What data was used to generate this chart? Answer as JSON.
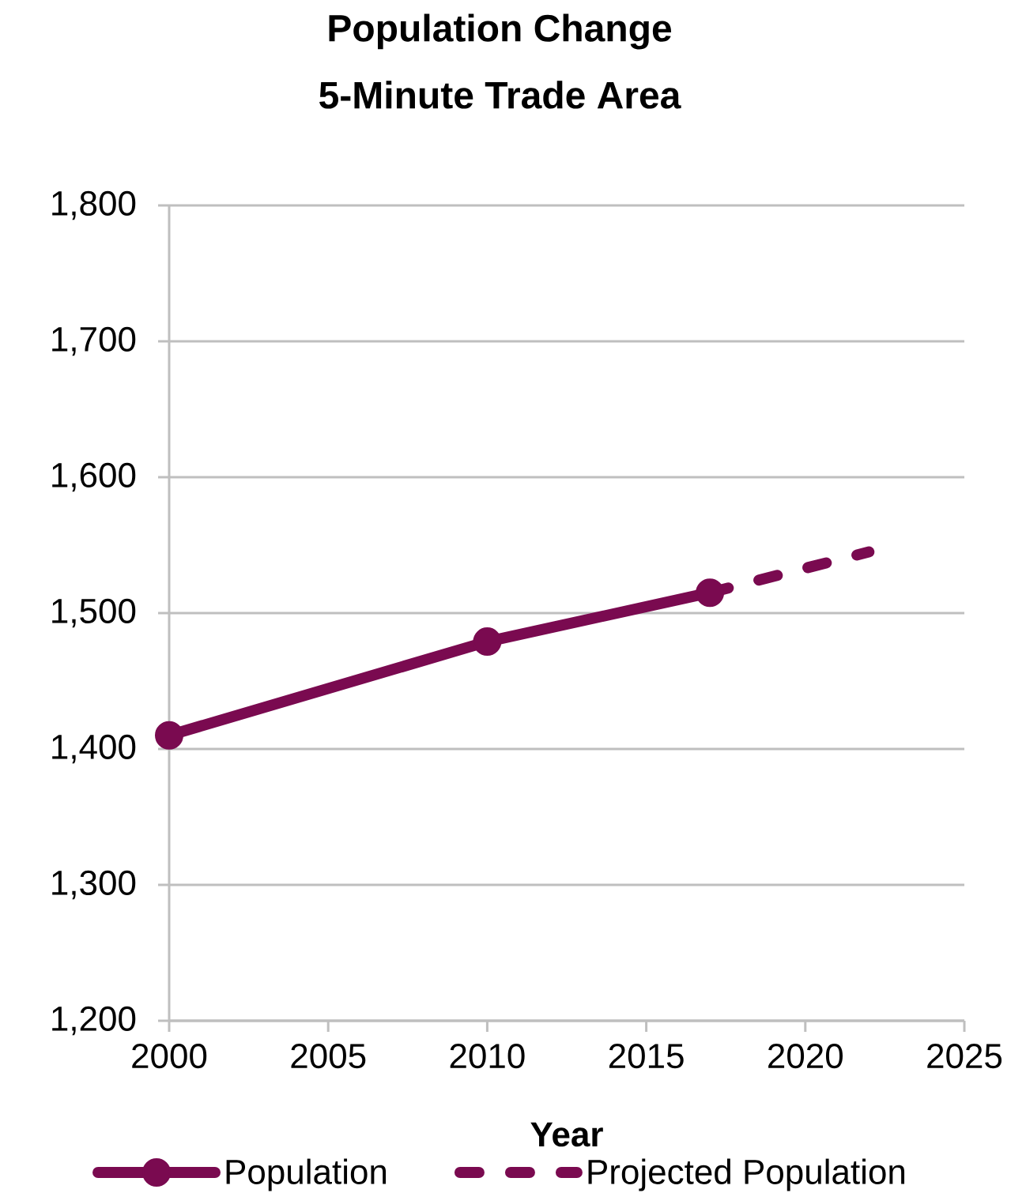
{
  "chart_data": {
    "type": "line",
    "title": "Population Change",
    "subtitle": "5-Minute Trade Area",
    "xlabel": "Year",
    "series": [
      {
        "name": "Population",
        "color": "#7a0a50",
        "x": [
          2000,
          2010,
          2017
        ],
        "values": [
          1410,
          1479,
          1515
        ],
        "marker": "circle",
        "line_style": "solid"
      },
      {
        "name": "Projected Population",
        "color": "#7a0a50",
        "x": [
          2017,
          2022
        ],
        "values": [
          1515,
          1545
        ],
        "marker": "none",
        "line_style": "dashed"
      }
    ],
    "xlim": [
      2000,
      2025
    ],
    "xticks": [
      2000,
      2005,
      2010,
      2015,
      2020,
      2025
    ],
    "ylim": [
      1200,
      1800
    ],
    "yticks": [
      {
        "value": 1200,
        "label": "1,200"
      },
      {
        "value": 1300,
        "label": "1,300"
      },
      {
        "value": 1400,
        "label": "1,400"
      },
      {
        "value": 1500,
        "label": "1,500"
      },
      {
        "value": 1600,
        "label": "1,600"
      },
      {
        "value": 1700,
        "label": "1,700"
      },
      {
        "value": 1800,
        "label": "1,800"
      }
    ],
    "grid": "y",
    "legend": "bottom"
  }
}
